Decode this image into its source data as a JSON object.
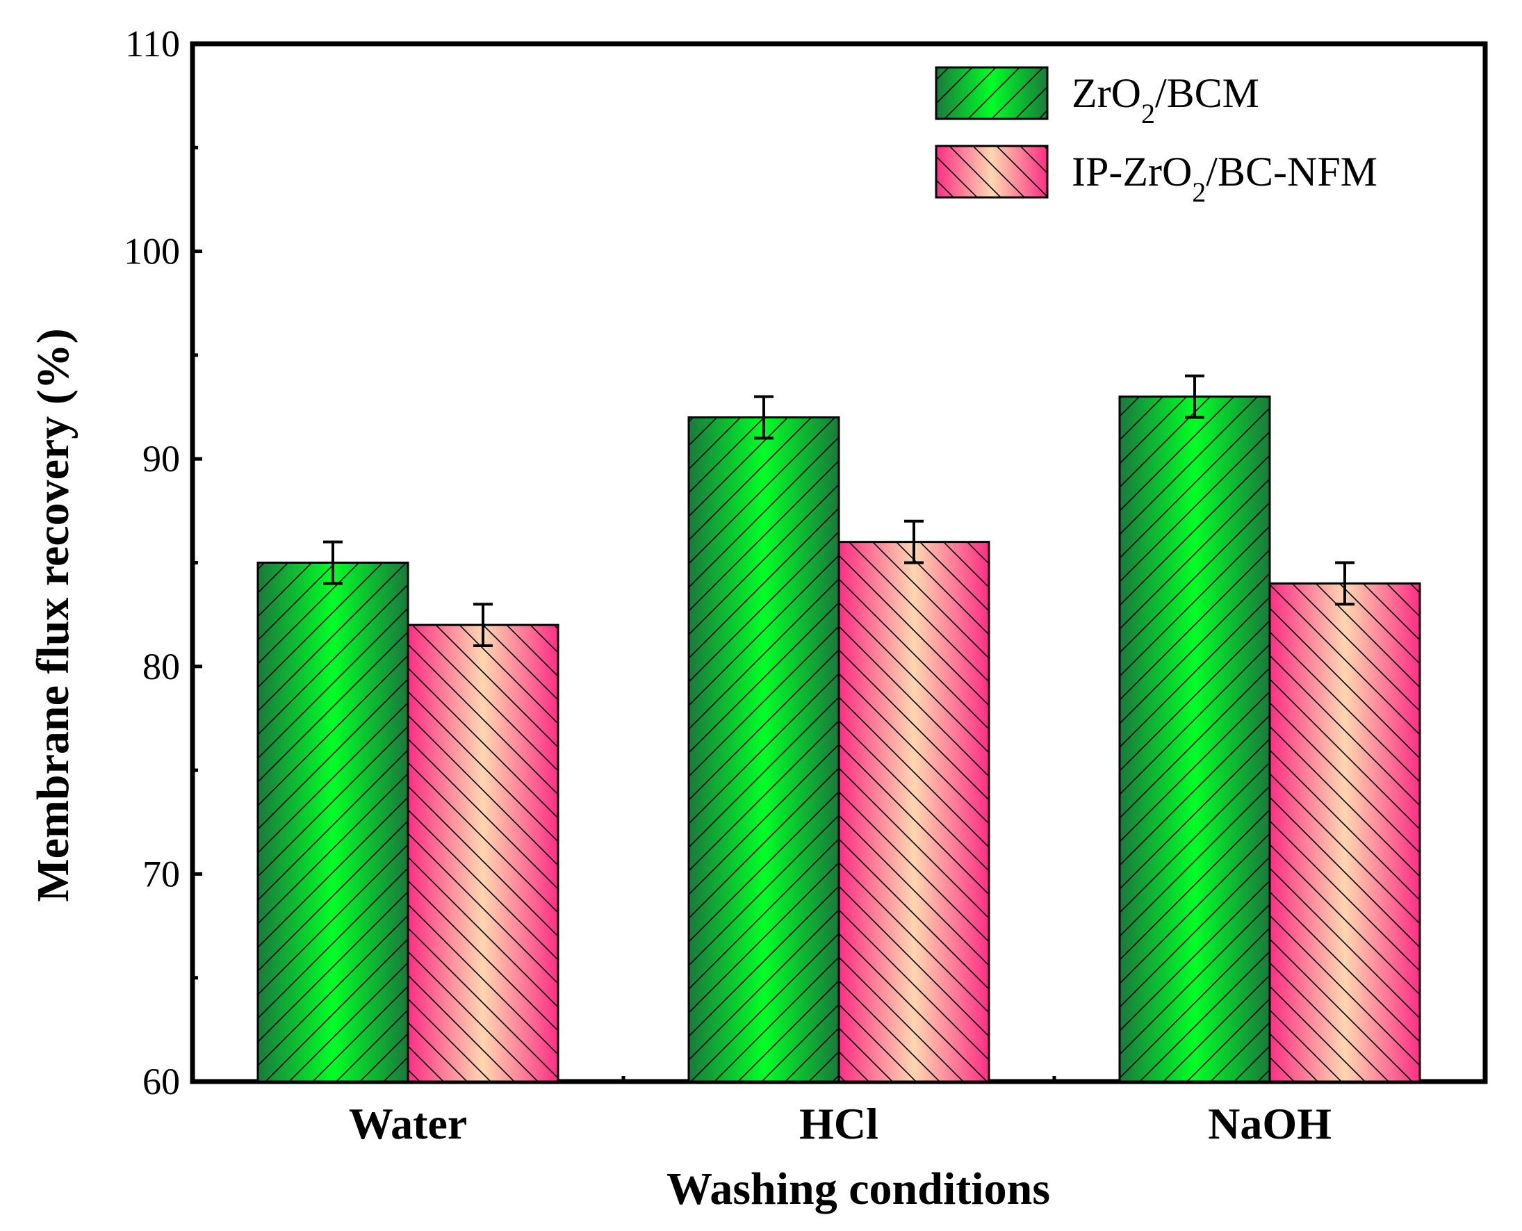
{
  "chart_data": {
    "type": "bar",
    "title": "",
    "xlabel": "Washing conditions",
    "ylabel": "Membrane flux recovery (%)",
    "categories": [
      "Water",
      "HCl",
      "NaOH"
    ],
    "ylim": [
      60,
      110
    ],
    "yticks": [
      60,
      70,
      80,
      90,
      100,
      110
    ],
    "yticks_minor": [
      65,
      75,
      85,
      95,
      105
    ],
    "grid": false,
    "legend_position": "top-right",
    "series": [
      {
        "name": "ZrO2/BCM",
        "name_main": "ZrO",
        "name_sub": "2",
        "name_tail": "/BCM",
        "values": [
          85,
          92,
          93
        ],
        "errors": [
          1,
          1,
          1
        ],
        "colors": {
          "edge": "#1a7a3c",
          "center": "#00ff26"
        },
        "hatch": "forward-diagonal"
      },
      {
        "name": "IP-ZrO2/BC-NFM",
        "name_main": "IP-ZrO",
        "name_sub": "2",
        "name_tail": "/BC-NFM",
        "values": [
          82,
          86,
          84
        ],
        "errors": [
          1,
          1,
          1
        ],
        "colors": {
          "edge": "#ff2e86",
          "center": "#ffd7b0"
        },
        "hatch": "back-diagonal"
      }
    ]
  }
}
